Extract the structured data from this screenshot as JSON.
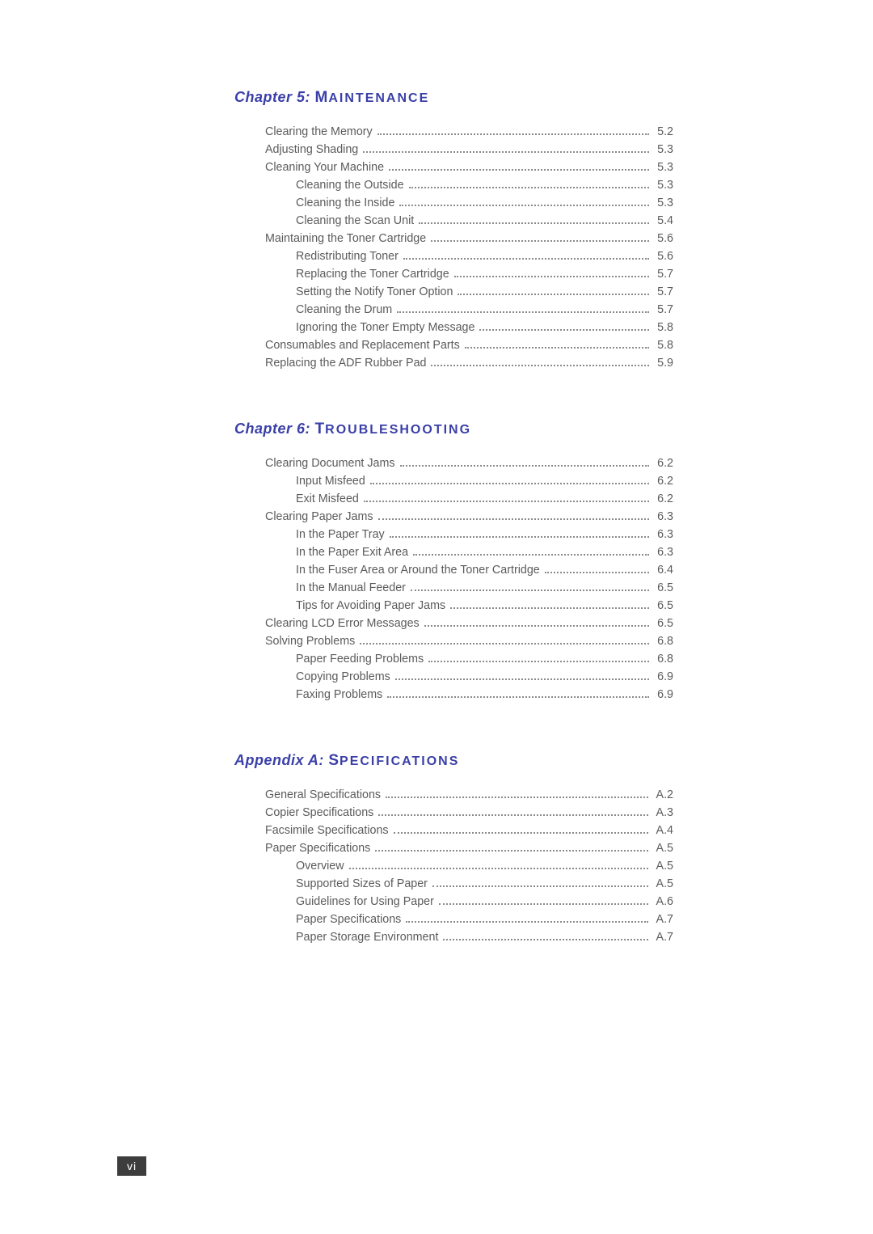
{
  "page_number": "vi",
  "colors": {
    "heading": "#3a3fa8",
    "text": "#5b5b5b",
    "page_box_bg": "#3d3d3d",
    "page_box_text": "#ffffff",
    "dots": "#8a8a8a",
    "background": "#ffffff"
  },
  "typography": {
    "heading_fontsize": 18,
    "heading_smallcaps_fontsize": 16,
    "body_fontsize": 14.3,
    "line_height": 22,
    "font_family": "Verdana"
  },
  "chapters": [
    {
      "prefix": "Chapter 5: ",
      "title_first": "M",
      "title_rest": "AINTENANCE",
      "entries": [
        {
          "label": "Clearing the Memory",
          "page": "5.2",
          "sub": false
        },
        {
          "label": "Adjusting Shading",
          "page": "5.3",
          "sub": false
        },
        {
          "label": "Cleaning Your Machine",
          "page": "5.3",
          "sub": false
        },
        {
          "label": "Cleaning the Outside",
          "page": "5.3",
          "sub": true
        },
        {
          "label": "Cleaning the Inside",
          "page": "5.3",
          "sub": true
        },
        {
          "label": "Cleaning the Scan Unit",
          "page": "5.4",
          "sub": true
        },
        {
          "label": "Maintaining the Toner Cartridge",
          "page": "5.6",
          "sub": false
        },
        {
          "label": "Redistributing Toner",
          "page": "5.6",
          "sub": true
        },
        {
          "label": "Replacing the Toner Cartridge",
          "page": "5.7",
          "sub": true
        },
        {
          "label": "Setting the Notify Toner Option",
          "page": "5.7",
          "sub": true
        },
        {
          "label": "Cleaning the Drum",
          "page": "5.7",
          "sub": true
        },
        {
          "label": "Ignoring the Toner Empty Message",
          "page": "5.8",
          "sub": true
        },
        {
          "label": "Consumables and Replacement Parts",
          "page": "5.8",
          "sub": false
        },
        {
          "label": "Replacing the ADF Rubber Pad",
          "page": "5.9",
          "sub": false
        }
      ]
    },
    {
      "prefix": "Chapter 6: ",
      "title_first": "T",
      "title_rest": "ROUBLESHOOTING",
      "entries": [
        {
          "label": "Clearing Document Jams",
          "page": "6.2",
          "sub": false
        },
        {
          "label": "Input Misfeed",
          "page": "6.2",
          "sub": true
        },
        {
          "label": "Exit Misfeed",
          "page": "6.2",
          "sub": true
        },
        {
          "label": "Clearing Paper Jams",
          "page": "6.3",
          "sub": false
        },
        {
          "label": "In the Paper Tray",
          "page": "6.3",
          "sub": true
        },
        {
          "label": "In the Paper Exit Area",
          "page": "6.3",
          "sub": true
        },
        {
          "label": "In the Fuser Area or Around the Toner Cartridge",
          "page": "6.4",
          "sub": true
        },
        {
          "label": "In the Manual Feeder",
          "page": "6.5",
          "sub": true
        },
        {
          "label": "Tips for Avoiding Paper Jams",
          "page": "6.5",
          "sub": true
        },
        {
          "label": "Clearing LCD Error Messages",
          "page": "6.5",
          "sub": false
        },
        {
          "label": "Solving Problems",
          "page": "6.8",
          "sub": false
        },
        {
          "label": "Paper Feeding Problems",
          "page": "6.8",
          "sub": true
        },
        {
          "label": "Copying Problems",
          "page": "6.9",
          "sub": true
        },
        {
          "label": "Faxing Problems",
          "page": "6.9",
          "sub": true
        }
      ]
    },
    {
      "prefix": "Appendix A: ",
      "title_first": "S",
      "title_rest": "PECIFICATIONS",
      "entries": [
        {
          "label": "General Specifications",
          "page": "A.2",
          "sub": false
        },
        {
          "label": "Copier Specifications",
          "page": "A.3",
          "sub": false
        },
        {
          "label": "Facsimile Specifications",
          "page": "A.4",
          "sub": false
        },
        {
          "label": "Paper Specifications",
          "page": "A.5",
          "sub": false
        },
        {
          "label": "Overview",
          "page": "A.5",
          "sub": true
        },
        {
          "label": "Supported Sizes of Paper",
          "page": "A.5",
          "sub": true
        },
        {
          "label": "Guidelines for Using Paper",
          "page": "A.6",
          "sub": true
        },
        {
          "label": "Paper Specifications",
          "page": "A.7",
          "sub": true
        },
        {
          "label": "Paper Storage Environment",
          "page": "A.7",
          "sub": true
        }
      ]
    }
  ]
}
